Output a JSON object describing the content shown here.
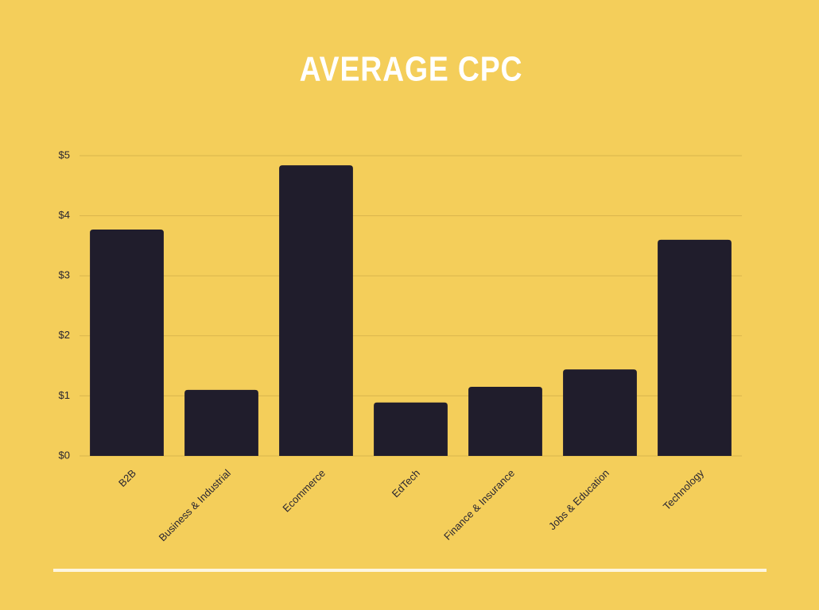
{
  "chart_data": {
    "type": "bar",
    "title": "AVERAGE CPC",
    "categories": [
      "B2B",
      "Business & Industrial",
      "Ecommerce",
      "EdTech",
      "Finance & Insurance",
      "Jobs & Education",
      "Technology"
    ],
    "values": [
      3.77,
      1.1,
      4.84,
      0.89,
      1.15,
      1.44,
      3.6
    ],
    "color": "#201d2c",
    "ylim": [
      0,
      5
    ],
    "yticks": [
      {
        "value": 0,
        "label": "$0"
      },
      {
        "value": 1,
        "label": "$1"
      },
      {
        "value": 2,
        "label": "$2"
      },
      {
        "value": 3,
        "label": "$3"
      },
      {
        "value": 4,
        "label": "$4"
      },
      {
        "value": 5,
        "label": "$5"
      }
    ],
    "grid": true
  }
}
